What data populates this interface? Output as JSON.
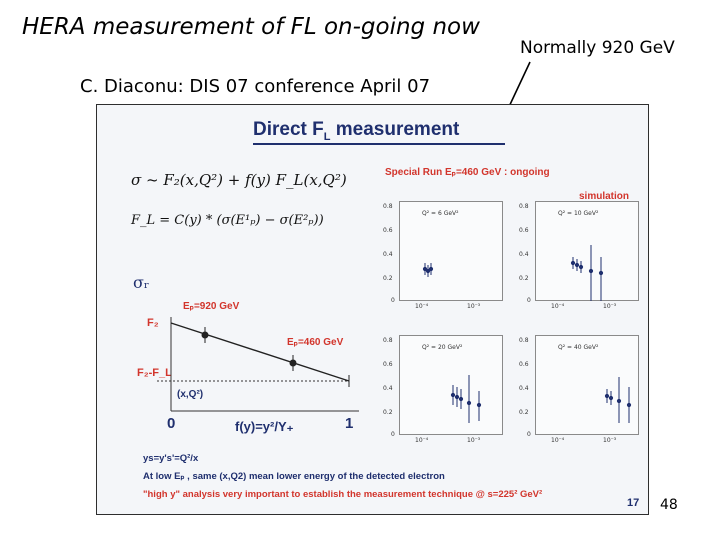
{
  "slide": {
    "title": "HERA measurement of FL on-going now",
    "subtitle": "C. Diaconu:  DIS 07 conference April 07",
    "note": "Normally 920 GeV",
    "page_number": "48"
  },
  "figure": {
    "title": "Direct F",
    "title_sub": "L",
    "title_rest": " measurement",
    "formula1": "σ ~ F₂(x,Q²) + f(y) F_L(x,Q²)",
    "formula2": "F_L = C(y) * (σ(E¹ₚ) − σ(E²ₚ))",
    "special_run_label": "Special Run Eₚ=460 GeV : ongoing",
    "simulation_label": "simulation",
    "sigma_r": "σᵣ",
    "f2": "F₂",
    "f2_fl": "F₂-F_L",
    "ep920": "Eₚ=920 GeV",
    "ep460": "Eₚ=460 GeV",
    "xq2": "(x,Q²)",
    "axis_zero": "0",
    "axis_one": "1",
    "fy": "f(y)=y²/Y₊",
    "panels": [
      {
        "q2": "Q² = 6 GeV²"
      },
      {
        "q2": "Q² = 10 GeV²"
      },
      {
        "q2": "Q² = 20 GeV²"
      },
      {
        "q2": "Q² = 40 GeV²"
      }
    ],
    "y_ticks": [
      "0.8",
      "0.6",
      "0.4",
      "0.2",
      "0"
    ],
    "x_ticks": [
      "10⁻⁴",
      "10⁻³"
    ],
    "footnote1": "ys=y's'=Q²/x",
    "footnote2": "At low Eₚ , same (x,Q2) mean lower energy of the detected electron",
    "footnote3": "\"high y\" analysis very important to establish the measurement technique @ s=225² GeV²",
    "figure_page": "17"
  }
}
